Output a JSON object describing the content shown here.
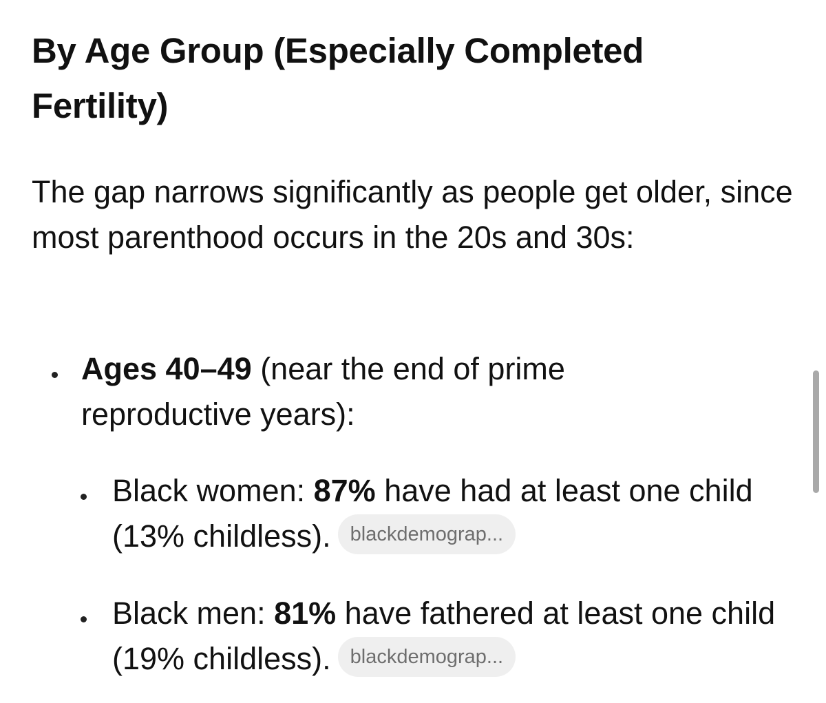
{
  "heading": "By Age Group (Especially Completed Fertility)",
  "intro": "The gap narrows significantly as people get older, since most parenthood occurs in the 20s and 30s:",
  "bullets": [
    {
      "bold": "Ages 40–49",
      "text": " (near the end of prime reproductive years):"
    },
    {
      "prefix": "Black women: ",
      "bold": "87%",
      "text": " have had at least one child (13% childless).",
      "chip": "blackdemograp..."
    },
    {
      "prefix": "Black men: ",
      "bold": "81%",
      "text": " have fathered at least one child (19% childless).",
      "chip": "blackdemograp..."
    }
  ]
}
